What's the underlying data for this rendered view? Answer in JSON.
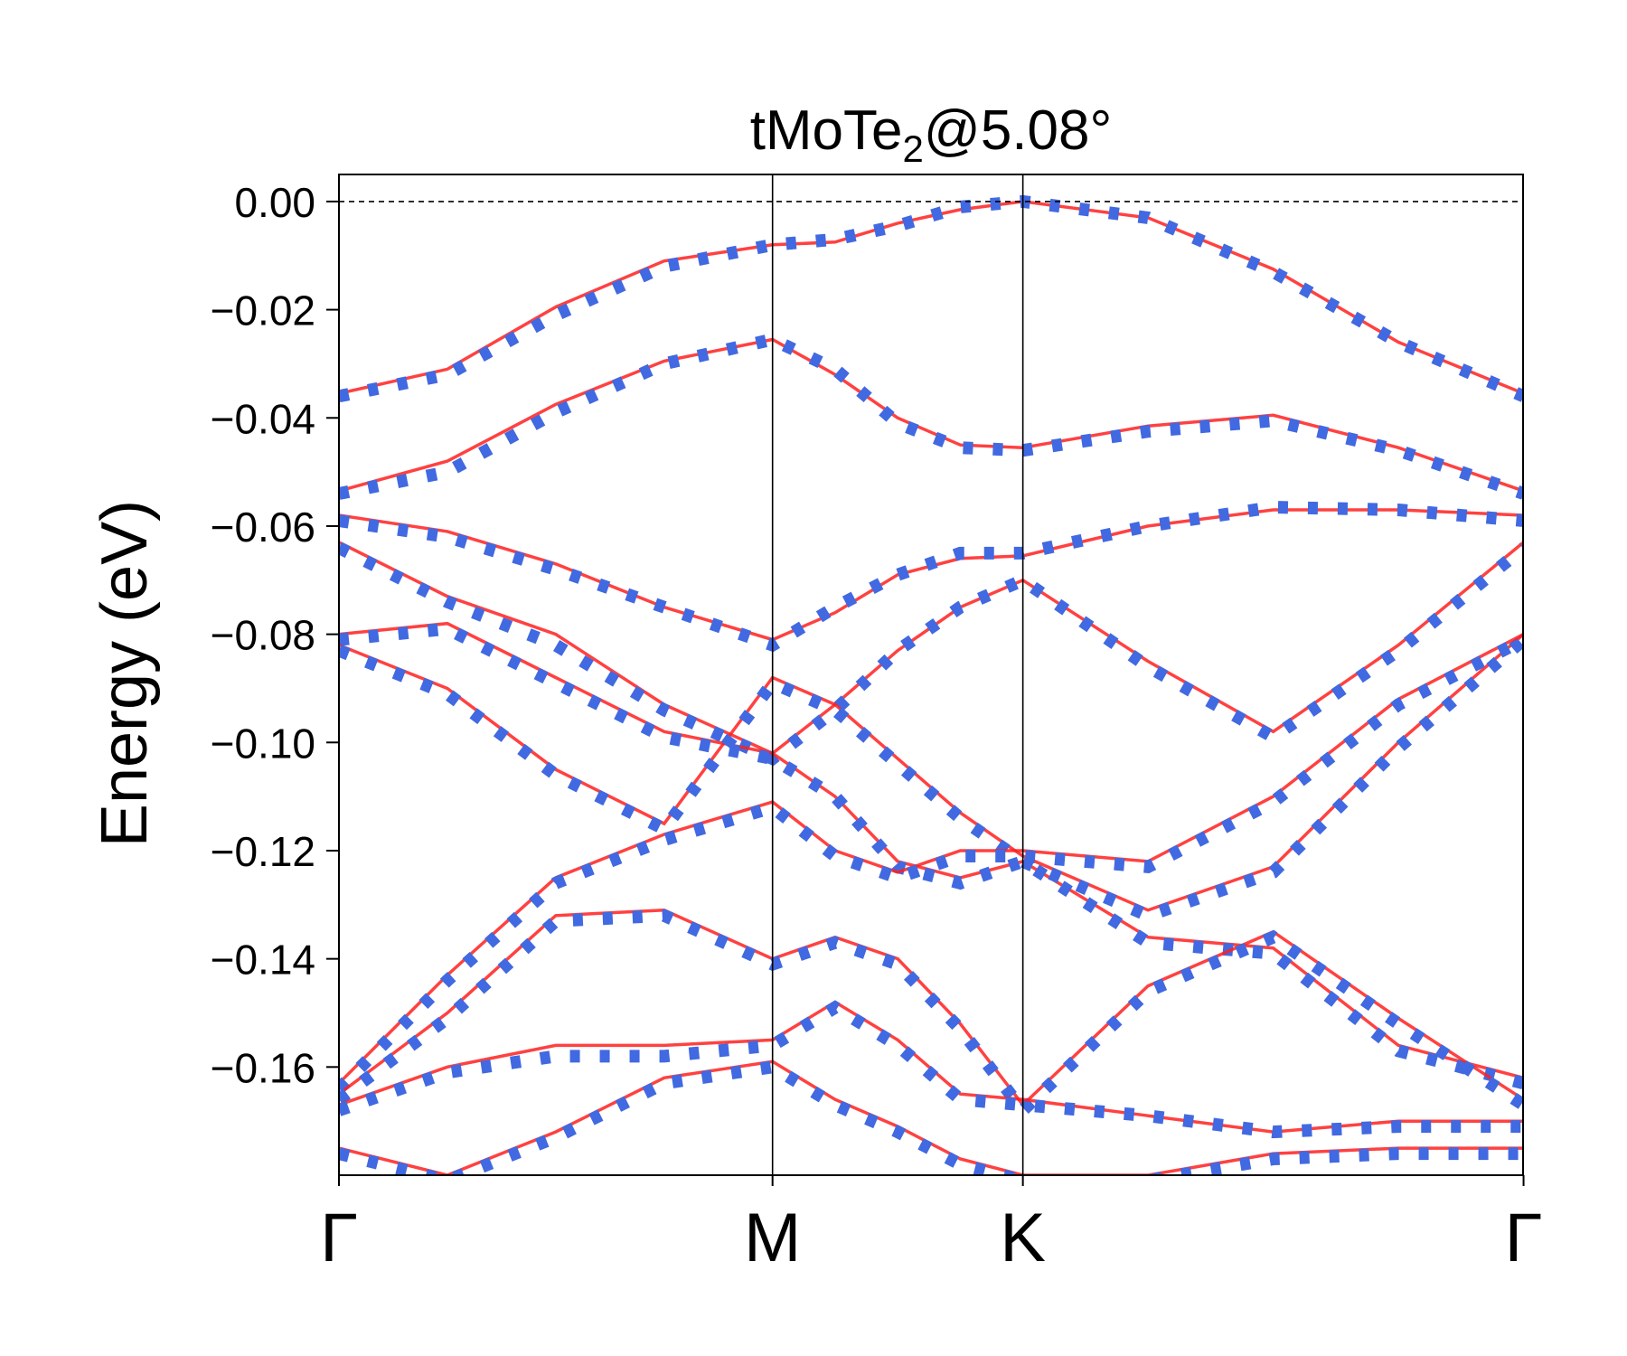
{
  "chart_data": {
    "type": "line",
    "title": "tMoTe",
    "title_subscript": "2",
    "title_suffix": "@5.08°",
    "ylabel": "Energy (eV)",
    "xlabel": "",
    "ylim": [
      -0.18,
      0.005
    ],
    "xlim": [
      0,
      4.73
    ],
    "ytick_values": [
      0.0,
      -0.02,
      -0.04,
      -0.06,
      -0.08,
      -0.1,
      -0.12,
      -0.14,
      -0.16
    ],
    "ytick_labels": [
      "0.00",
      "−0.02",
      "−0.04",
      "−0.06",
      "−0.08",
      "−0.10",
      "−0.12",
      "−0.14",
      "−0.16"
    ],
    "xticks": [
      {
        "label": "Γ",
        "x": 0
      },
      {
        "label": "M",
        "x": 1.732
      },
      {
        "label": "K",
        "x": 2.732
      },
      {
        "label": "Γ",
        "x": 4.732
      }
    ],
    "fermi_level": 0.0,
    "grid": false,
    "colors": {
      "reference": "#ff2020",
      "model": "#4169e1",
      "axes": "#000000"
    },
    "series": [
      {
        "style": "solid",
        "x": [
          0,
          0.433,
          0.866,
          1.299,
          1.732,
          1.982,
          2.232,
          2.482,
          2.732,
          3.232,
          3.732,
          4.232,
          4.732
        ],
        "values": [
          -0.0355,
          -0.031,
          -0.0195,
          -0.011,
          -0.008,
          -0.0075,
          -0.004,
          -0.0015,
          0.0,
          -0.003,
          -0.0125,
          -0.026,
          -0.0355
        ]
      },
      {
        "style": "dotted",
        "x": [
          0,
          0.433,
          0.866,
          1.299,
          1.732,
          1.982,
          2.232,
          2.482,
          2.732,
          3.232,
          3.732,
          4.232,
          4.732
        ],
        "values": [
          -0.036,
          -0.032,
          -0.021,
          -0.012,
          -0.008,
          -0.007,
          -0.0045,
          -0.001,
          0.0,
          -0.003,
          -0.013,
          -0.026,
          -0.036
        ]
      },
      {
        "style": "solid",
        "x": [
          0,
          0.433,
          0.866,
          1.299,
          1.732,
          1.982,
          2.232,
          2.482,
          2.732,
          3.232,
          3.732,
          4.232,
          4.732
        ],
        "values": [
          -0.0535,
          -0.048,
          -0.0375,
          -0.0295,
          -0.0255,
          -0.032,
          -0.04,
          -0.045,
          -0.0455,
          -0.0415,
          -0.0395,
          -0.0455,
          -0.0535
        ]
      },
      {
        "style": "dotted",
        "x": [
          0,
          0.433,
          0.866,
          1.299,
          1.732,
          1.982,
          2.232,
          2.482,
          2.732,
          3.232,
          3.732,
          4.232,
          4.732
        ],
        "values": [
          -0.054,
          -0.05,
          -0.039,
          -0.03,
          -0.0255,
          -0.031,
          -0.041,
          -0.0455,
          -0.046,
          -0.0425,
          -0.0405,
          -0.046,
          -0.054
        ]
      },
      {
        "style": "solid",
        "x": [
          0,
          0.433,
          0.866,
          1.299,
          1.732,
          1.982,
          2.232,
          2.482,
          2.732,
          3.232,
          3.732,
          4.232,
          4.732
        ],
        "values": [
          -0.058,
          -0.061,
          -0.067,
          -0.075,
          -0.081,
          -0.076,
          -0.069,
          -0.066,
          -0.0655,
          -0.06,
          -0.057,
          -0.057,
          -0.058
        ]
      },
      {
        "style": "dotted",
        "x": [
          0,
          0.433,
          0.866,
          1.299,
          1.732,
          1.982,
          2.232,
          2.482,
          2.732,
          3.232,
          3.732,
          4.232,
          4.732
        ],
        "values": [
          -0.059,
          -0.062,
          -0.068,
          -0.075,
          -0.082,
          -0.075,
          -0.069,
          -0.065,
          -0.065,
          -0.06,
          -0.0565,
          -0.057,
          -0.059
        ]
      },
      {
        "style": "solid",
        "x": [
          0,
          0.433,
          0.866,
          1.299,
          1.732,
          1.982,
          2.232,
          2.482,
          2.732,
          3.232,
          3.732,
          4.232,
          4.732
        ],
        "values": [
          -0.063,
          -0.073,
          -0.08,
          -0.093,
          -0.102,
          -0.093,
          -0.083,
          -0.075,
          -0.07,
          -0.085,
          -0.098,
          -0.082,
          -0.063
        ]
      },
      {
        "style": "dotted",
        "x": [
          0,
          0.433,
          0.866,
          1.299,
          1.732,
          1.982,
          2.232,
          2.482,
          2.732,
          3.232,
          3.732,
          4.232,
          4.732
        ],
        "values": [
          -0.064,
          -0.074,
          -0.082,
          -0.094,
          -0.103,
          -0.094,
          -0.083,
          -0.075,
          -0.07,
          -0.086,
          -0.099,
          -0.083,
          -0.064
        ]
      },
      {
        "style": "solid",
        "x": [
          0,
          0.433,
          0.866,
          1.299,
          1.732,
          1.982,
          2.232,
          2.482,
          2.732,
          3.232,
          3.732,
          4.232,
          4.732
        ],
        "values": [
          -0.08,
          -0.078,
          -0.088,
          -0.098,
          -0.102,
          -0.11,
          -0.122,
          -0.125,
          -0.122,
          -0.136,
          -0.138,
          -0.156,
          -0.162
        ]
      },
      {
        "style": "dotted",
        "x": [
          0,
          0.433,
          0.866,
          1.299,
          1.732,
          1.982,
          2.232,
          2.482,
          2.732,
          3.232,
          3.732,
          4.232,
          4.732
        ],
        "values": [
          -0.081,
          -0.079,
          -0.089,
          -0.099,
          -0.103,
          -0.11,
          -0.123,
          -0.126,
          -0.122,
          -0.137,
          -0.139,
          -0.157,
          -0.163
        ]
      },
      {
        "style": "solid",
        "x": [
          0,
          0.433,
          0.866,
          1.299,
          1.732,
          1.982,
          2.232,
          2.482,
          2.732,
          3.232,
          3.732,
          4.232,
          4.732
        ],
        "values": [
          -0.082,
          -0.09,
          -0.105,
          -0.115,
          -0.088,
          -0.093,
          -0.103,
          -0.113,
          -0.121,
          -0.131,
          -0.123,
          -0.1,
          -0.08
        ]
      },
      {
        "style": "dotted",
        "x": [
          0,
          0.433,
          0.866,
          1.299,
          1.732,
          1.982,
          2.232,
          2.482,
          2.732,
          3.232,
          3.732,
          4.232,
          4.732
        ],
        "values": [
          -0.083,
          -0.091,
          -0.106,
          -0.116,
          -0.089,
          -0.094,
          -0.104,
          -0.114,
          -0.122,
          -0.132,
          -0.124,
          -0.101,
          -0.081
        ]
      },
      {
        "style": "solid",
        "x": [
          0,
          0.433,
          0.866,
          1.299,
          1.732,
          1.982,
          2.232,
          2.482,
          2.732,
          3.232,
          3.732,
          4.232,
          4.732
        ],
        "values": [
          -0.163,
          -0.143,
          -0.125,
          -0.117,
          -0.111,
          -0.12,
          -0.124,
          -0.12,
          -0.12,
          -0.122,
          -0.11,
          -0.092,
          -0.08
        ]
      },
      {
        "style": "dotted",
        "x": [
          0,
          0.433,
          0.866,
          1.299,
          1.732,
          1.982,
          2.232,
          2.482,
          2.732,
          3.232,
          3.732,
          4.232,
          4.732
        ],
        "values": [
          -0.164,
          -0.144,
          -0.126,
          -0.118,
          -0.112,
          -0.121,
          -0.125,
          -0.121,
          -0.121,
          -0.123,
          -0.111,
          -0.093,
          -0.081
        ]
      },
      {
        "style": "solid",
        "x": [
          0,
          0.433,
          0.866,
          1.299,
          1.732,
          1.982,
          2.232,
          2.482,
          2.732,
          3.232,
          3.732,
          4.232,
          4.732
        ],
        "values": [
          -0.165,
          -0.15,
          -0.132,
          -0.131,
          -0.14,
          -0.136,
          -0.14,
          -0.152,
          -0.167,
          -0.145,
          -0.135,
          -0.151,
          -0.166
        ]
      },
      {
        "style": "dotted",
        "x": [
          0,
          0.433,
          0.866,
          1.299,
          1.732,
          1.982,
          2.232,
          2.482,
          2.732,
          3.232,
          3.732,
          4.232,
          4.732
        ],
        "values": [
          -0.166,
          -0.151,
          -0.133,
          -0.132,
          -0.141,
          -0.137,
          -0.141,
          -0.153,
          -0.168,
          -0.146,
          -0.136,
          -0.152,
          -0.167
        ]
      },
      {
        "style": "solid",
        "x": [
          0,
          0.433,
          0.866,
          1.299,
          1.732,
          1.982,
          2.232,
          2.482,
          2.732,
          3.232,
          3.732,
          4.232,
          4.732
        ],
        "values": [
          -0.167,
          -0.16,
          -0.156,
          -0.156,
          -0.155,
          -0.148,
          -0.155,
          -0.165,
          -0.166,
          -0.169,
          -0.172,
          -0.17,
          -0.17
        ]
      },
      {
        "style": "dotted",
        "x": [
          0,
          0.433,
          0.866,
          1.299,
          1.732,
          1.982,
          2.232,
          2.482,
          2.732,
          3.232,
          3.732,
          4.232,
          4.732
        ],
        "values": [
          -0.168,
          -0.161,
          -0.158,
          -0.158,
          -0.156,
          -0.149,
          -0.156,
          -0.166,
          -0.167,
          -0.169,
          -0.172,
          -0.171,
          -0.171
        ]
      },
      {
        "style": "solid",
        "x": [
          0,
          0.433,
          0.866,
          1.299,
          1.732,
          1.982,
          2.232,
          2.482,
          2.732,
          3.232,
          3.732,
          4.232,
          4.732
        ],
        "values": [
          -0.175,
          -0.18,
          -0.172,
          -0.162,
          -0.159,
          -0.166,
          -0.171,
          -0.177,
          -0.18,
          -0.18,
          -0.176,
          -0.175,
          -0.175
        ]
      },
      {
        "style": "dotted",
        "x": [
          0,
          0.433,
          0.866,
          1.299,
          1.732,
          1.982,
          2.232,
          2.482,
          2.732,
          3.232,
          3.732,
          4.232,
          4.732
        ],
        "values": [
          -0.176,
          -0.181,
          -0.173,
          -0.163,
          -0.16,
          -0.167,
          -0.172,
          -0.178,
          -0.181,
          -0.181,
          -0.177,
          -0.176,
          -0.176
        ]
      }
    ]
  }
}
